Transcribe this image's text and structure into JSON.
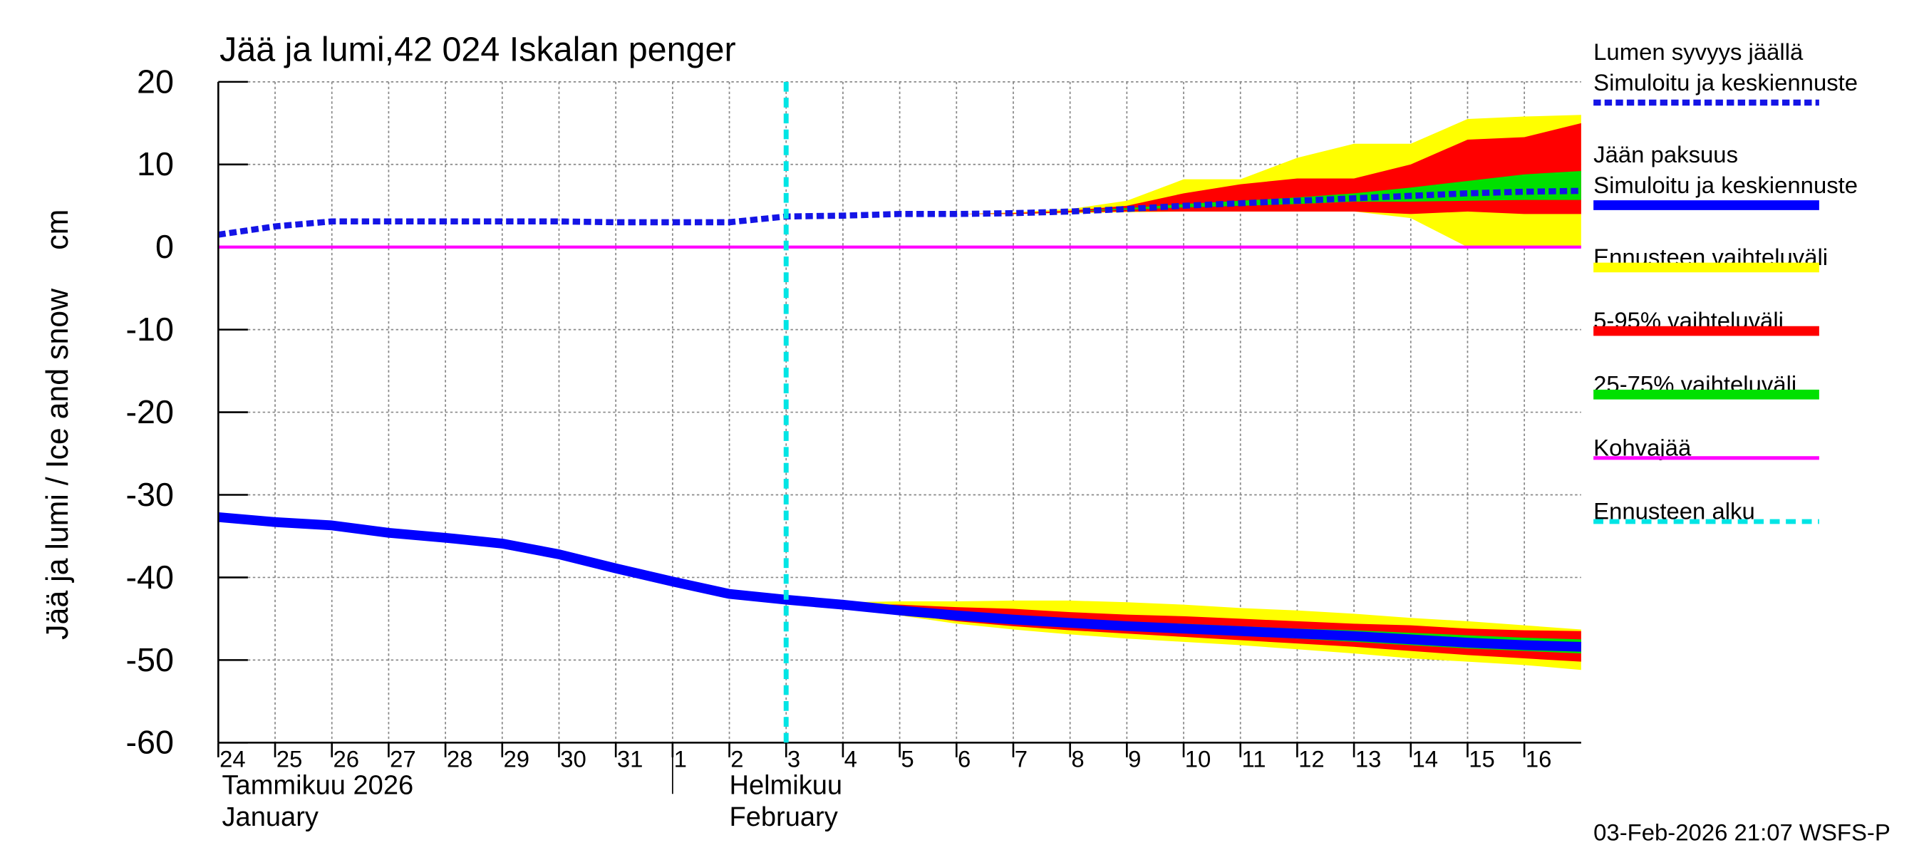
{
  "chart_data": {
    "type": "band-line",
    "title": "Jää ja lumi,42 024 Iskalan penger",
    "ylabel": "Jää ja lumi / Ice and snow",
    "yunit": "cm",
    "footer": "03-Feb-2026 21:07 WSFS-P",
    "month_labels": [
      {
        "x": "2026-01-24",
        "lines": [
          "Tammikuu  2026",
          "January"
        ]
      },
      {
        "x": "2026-02-01",
        "lines": [
          "Helmikuu",
          "February"
        ]
      }
    ],
    "grid": true,
    "ylim": [
      -60,
      20
    ],
    "yticks": [
      -60,
      -50,
      -40,
      -30,
      -20,
      -10,
      0,
      10,
      20
    ],
    "xlim": [
      "2026-01-24",
      "2026-02-17"
    ],
    "xticks": [
      {
        "value": "2026-01-24",
        "label": "24"
      },
      {
        "value": "2026-01-25",
        "label": "25"
      },
      {
        "value": "2026-01-26",
        "label": "26"
      },
      {
        "value": "2026-01-27",
        "label": "27"
      },
      {
        "value": "2026-01-28",
        "label": "28"
      },
      {
        "value": "2026-01-29",
        "label": "29"
      },
      {
        "value": "2026-01-30",
        "label": "30"
      },
      {
        "value": "2026-01-31",
        "label": "31"
      },
      {
        "value": "2026-02-01",
        "label": "1"
      },
      {
        "value": "2026-02-02",
        "label": "2"
      },
      {
        "value": "2026-02-03",
        "label": "3"
      },
      {
        "value": "2026-02-04",
        "label": "4"
      },
      {
        "value": "2026-02-05",
        "label": "5"
      },
      {
        "value": "2026-02-06",
        "label": "6"
      },
      {
        "value": "2026-02-07",
        "label": "7"
      },
      {
        "value": "2026-02-08",
        "label": "8"
      },
      {
        "value": "2026-02-09",
        "label": "9"
      },
      {
        "value": "2026-02-10",
        "label": "10"
      },
      {
        "value": "2026-02-11",
        "label": "11"
      },
      {
        "value": "2026-02-12",
        "label": "12"
      },
      {
        "value": "2026-02-13",
        "label": "13"
      },
      {
        "value": "2026-02-14",
        "label": "14"
      },
      {
        "value": "2026-02-15",
        "label": "15"
      },
      {
        "value": "2026-02-16",
        "label": "16"
      }
    ],
    "x": [
      "2026-01-24",
      "2026-01-25",
      "2026-01-26",
      "2026-01-27",
      "2026-01-28",
      "2026-01-29",
      "2026-01-30",
      "2026-01-31",
      "2026-02-01",
      "2026-02-02",
      "2026-02-03",
      "2026-02-04",
      "2026-02-05",
      "2026-02-06",
      "2026-02-07",
      "2026-02-08",
      "2026-02-09",
      "2026-02-10",
      "2026-02-11",
      "2026-02-12",
      "2026-02-13",
      "2026-02-14",
      "2026-02-15",
      "2026-02-16",
      "2026-02-17"
    ],
    "series": [
      {
        "name": "Lumen syvyys jäällä",
        "subname": "Simuloitu ja keskiennuste",
        "color": "#1414e6",
        "dashed": true,
        "values": [
          1.5,
          2.5,
          3.1,
          3.1,
          3.1,
          3.1,
          3.1,
          3.0,
          3.0,
          3.0,
          3.7,
          3.8,
          4.0,
          4.0,
          4.1,
          4.3,
          4.6,
          5.0,
          5.3,
          5.6,
          5.9,
          6.2,
          6.5,
          6.7,
          6.8
        ]
      },
      {
        "name": "Jään paksuus",
        "subname": "Simuloitu ja keskiennuste",
        "color": "#0000ff",
        "dashed": false,
        "values": [
          -32.7,
          -33.3,
          -33.7,
          -34.6,
          -35.2,
          -35.9,
          -37.2,
          -38.9,
          -40.5,
          -42.0,
          -42.7,
          -43.3,
          -44.0,
          -44.6,
          -45.1,
          -45.5,
          -45.9,
          -46.2,
          -46.5,
          -46.8,
          -47.1,
          -47.5,
          -47.9,
          -48.2,
          -48.4
        ]
      }
    ],
    "bands": [
      {
        "name": "Ennusteen vaihteluväli",
        "color": "#ffff00",
        "snow_upper": [
          null,
          null,
          null,
          null,
          null,
          null,
          null,
          null,
          null,
          null,
          3.7,
          3.8,
          4.0,
          4.0,
          4.2,
          4.6,
          5.6,
          8.2,
          8.2,
          10.8,
          12.5,
          12.5,
          15.5,
          15.8,
          16.0
        ],
        "snow_lower": [
          null,
          null,
          null,
          null,
          null,
          null,
          null,
          null,
          null,
          null,
          3.7,
          3.8,
          4.0,
          4.0,
          4.0,
          4.1,
          4.2,
          4.3,
          4.3,
          4.3,
          4.3,
          3.5,
          0,
          0,
          0
        ],
        "ice_upper": [
          null,
          null,
          null,
          null,
          null,
          null,
          null,
          null,
          null,
          null,
          -42.7,
          -43.0,
          -42.9,
          -42.9,
          -42.8,
          -42.8,
          -43.0,
          -43.3,
          -43.7,
          -44.0,
          -44.4,
          -44.9,
          -45.3,
          -45.8,
          -46.3
        ],
        "ice_lower": [
          null,
          null,
          null,
          null,
          null,
          null,
          null,
          null,
          null,
          null,
          -42.7,
          -43.4,
          -44.6,
          -45.6,
          -46.3,
          -46.9,
          -47.4,
          -47.8,
          -48.2,
          -48.7,
          -49.2,
          -49.8,
          -50.2,
          -50.6,
          -51.2
        ]
      },
      {
        "name": "5-95% vaihteluväli",
        "color": "#ff0000",
        "snow_upper": [
          null,
          null,
          null,
          null,
          null,
          null,
          null,
          null,
          null,
          null,
          3.7,
          3.8,
          4.0,
          4.0,
          4.1,
          4.4,
          5.0,
          6.5,
          7.6,
          8.3,
          8.3,
          10.0,
          13.0,
          13.3,
          15.0
        ],
        "snow_lower": [
          null,
          null,
          null,
          null,
          null,
          null,
          null,
          null,
          null,
          null,
          3.7,
          3.8,
          4.0,
          4.0,
          4.0,
          4.2,
          4.3,
          4.3,
          4.3,
          4.3,
          4.3,
          4.0,
          4.3,
          4.0,
          4.0
        ],
        "ice_upper": [
          null,
          null,
          null,
          null,
          null,
          null,
          null,
          null,
          null,
          null,
          -42.7,
          -43.2,
          -43.3,
          -43.6,
          -43.8,
          -44.2,
          -44.5,
          -44.7,
          -45.0,
          -45.3,
          -45.6,
          -45.8,
          -46.2,
          -46.4,
          -46.5
        ],
        "ice_lower": [
          null,
          null,
          null,
          null,
          null,
          null,
          null,
          null,
          null,
          null,
          -42.7,
          -43.3,
          -44.4,
          -45.3,
          -45.9,
          -46.4,
          -46.8,
          -47.2,
          -47.6,
          -48.0,
          -48.4,
          -48.9,
          -49.4,
          -49.8,
          -50.2
        ]
      },
      {
        "name": "25-75% vaihteluväli",
        "color": "#00e000",
        "snow_upper": [
          null,
          null,
          null,
          null,
          null,
          null,
          null,
          null,
          null,
          null,
          3.7,
          3.8,
          4.0,
          4.0,
          4.1,
          4.3,
          4.7,
          5.2,
          5.6,
          6.0,
          6.5,
          7.2,
          8.0,
          8.8,
          9.2
        ],
        "snow_lower": [
          null,
          null,
          null,
          null,
          null,
          null,
          null,
          null,
          null,
          null,
          3.7,
          3.8,
          4.0,
          4.0,
          4.1,
          4.3,
          4.5,
          4.8,
          5.0,
          5.2,
          5.5,
          5.5,
          5.6,
          5.7,
          5.7
        ],
        "ice_upper": [
          null,
          null,
          null,
          null,
          null,
          null,
          null,
          null,
          null,
          null,
          -42.7,
          -43.3,
          -43.8,
          -44.2,
          -44.6,
          -45.0,
          -45.4,
          -45.6,
          -45.9,
          -46.2,
          -46.4,
          -46.7,
          -47.0,
          -47.3,
          -47.5
        ],
        "ice_lower": [
          null,
          null,
          null,
          null,
          null,
          null,
          null,
          null,
          null,
          null,
          -42.7,
          -43.3,
          -44.1,
          -44.8,
          -45.4,
          -45.9,
          -46.3,
          -46.7,
          -47.0,
          -47.4,
          -47.8,
          -48.2,
          -48.6,
          -48.9,
          -49.2
        ]
      }
    ],
    "reference_line": {
      "name": "Kohvajää",
      "color": "#ff00ff",
      "values": [
        0,
        0,
        0,
        0,
        0,
        0,
        0,
        0,
        0,
        0,
        0,
        0,
        0,
        0,
        0,
        0,
        0,
        0,
        0,
        0,
        0,
        0,
        0,
        0,
        0
      ]
    },
    "forecast_start": {
      "name": "Ennusteen alku",
      "x": "2026-02-03",
      "color": "#00e5e5"
    }
  }
}
